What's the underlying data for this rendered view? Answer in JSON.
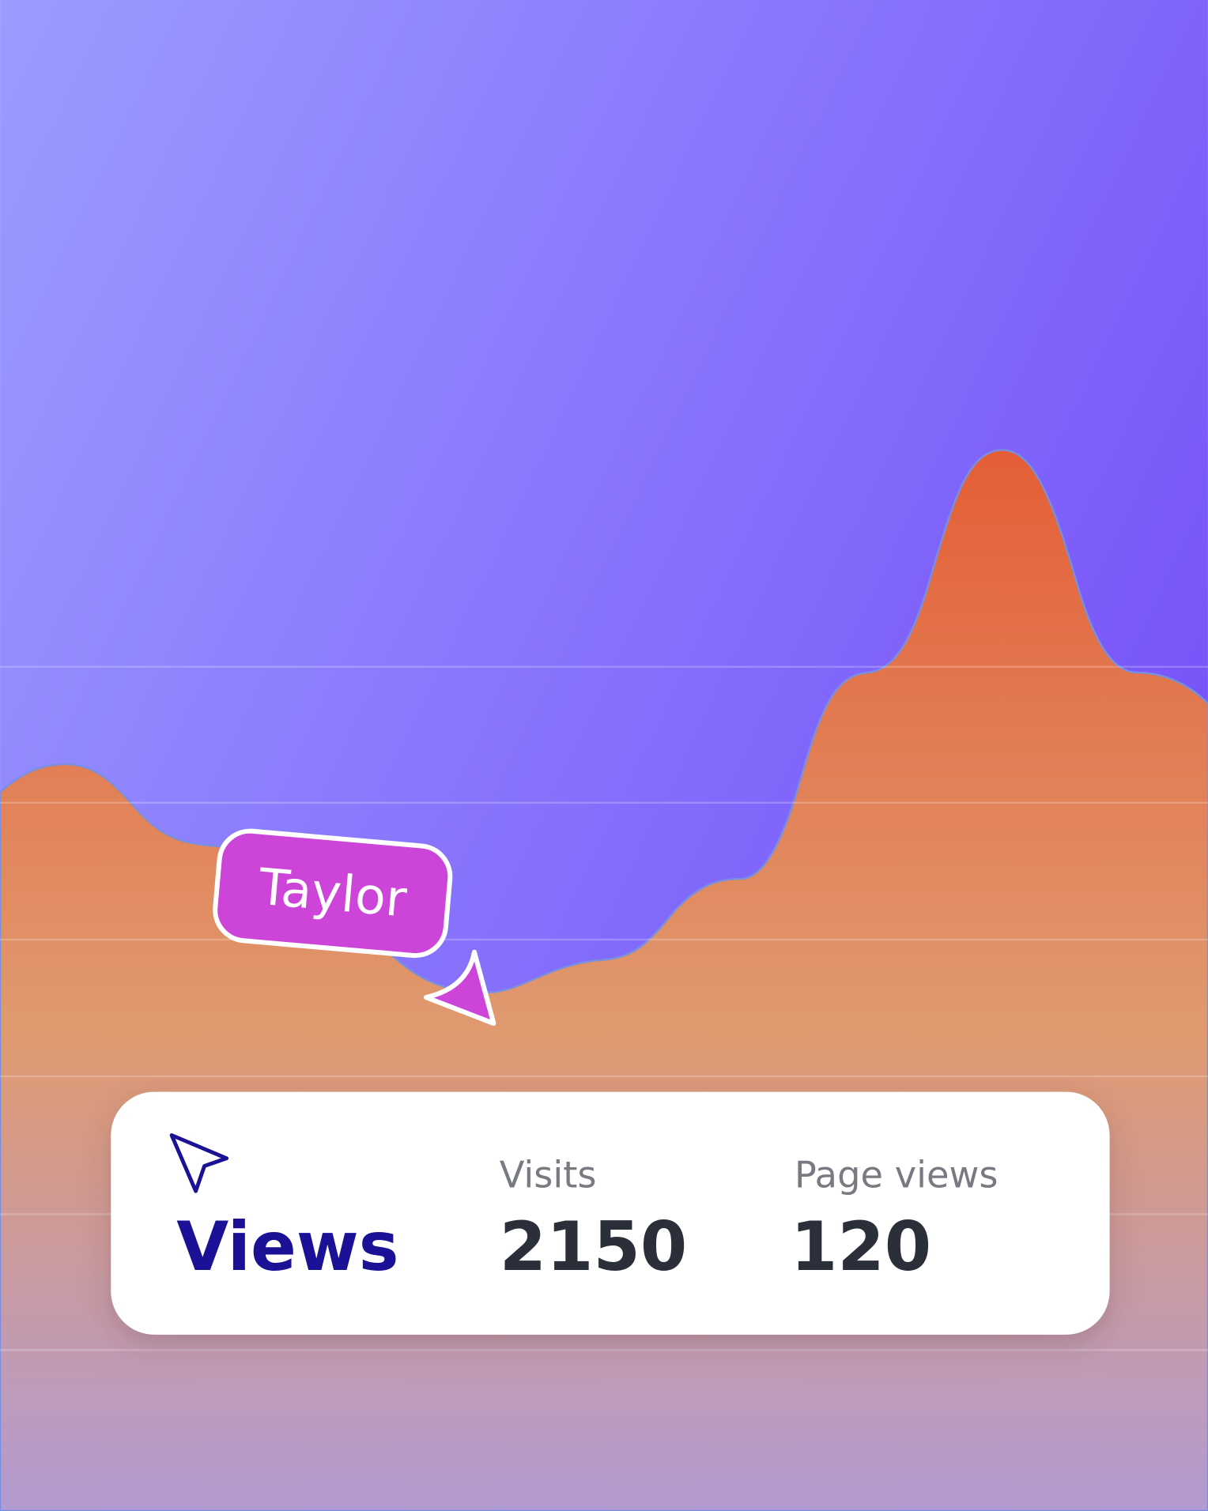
{
  "tag": {
    "label": "Taylor"
  },
  "card": {
    "title": "Views",
    "stats": [
      {
        "label": "Visits",
        "value": 2150
      },
      {
        "label": "Page views",
        "value": 120
      }
    ]
  }
}
